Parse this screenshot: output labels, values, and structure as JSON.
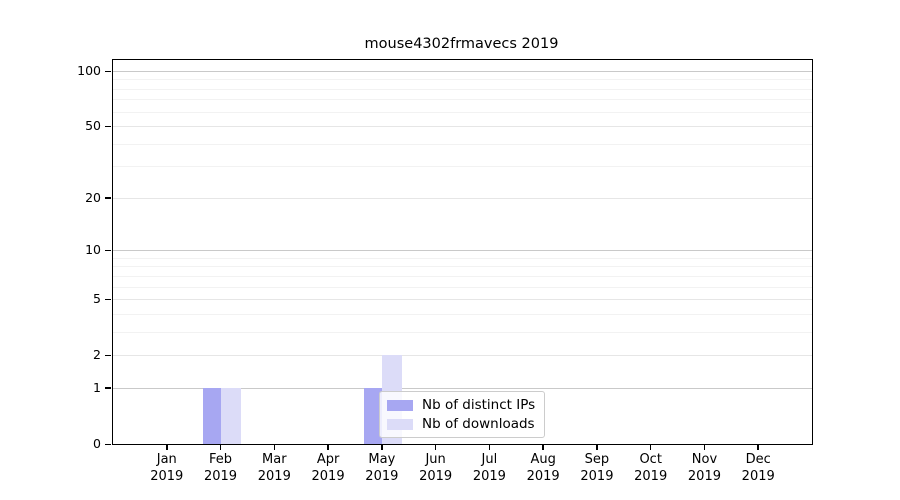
{
  "chart_data": {
    "type": "bar",
    "title": "mouse4302frmavecs 2019",
    "xlabel": "",
    "ylabel": "",
    "year_label": "2019",
    "months": [
      "Jan",
      "Feb",
      "Mar",
      "Apr",
      "May",
      "Jun",
      "Jul",
      "Aug",
      "Sep",
      "Oct",
      "Nov",
      "Dec"
    ],
    "categories": [
      "Jan 2019",
      "Feb 2019",
      "Mar 2019",
      "Apr 2019",
      "May 2019",
      "Jun 2019",
      "Jul 2019",
      "Aug 2019",
      "Sep 2019",
      "Oct 2019",
      "Nov 2019",
      "Dec 2019"
    ],
    "series": [
      {
        "name": "Nb of distinct IPs",
        "color": "#a7a7f2",
        "values": [
          0,
          1,
          0,
          0,
          1,
          0,
          0,
          0,
          0,
          0,
          0,
          0
        ]
      },
      {
        "name": "Nb of downloads",
        "color": "#dcdcf8",
        "values": [
          0,
          1,
          0,
          0,
          2,
          0,
          0,
          0,
          0,
          0,
          0,
          0
        ]
      }
    ],
    "yticks": [
      0,
      1,
      2,
      5,
      10,
      20,
      50,
      100
    ],
    "yscale": "log1p",
    "ylim": [
      0,
      113
    ],
    "grid": true,
    "legend_position": "lower-center-inside",
    "grid_colors": {
      "major": "#c9c9c9",
      "minor": "#f2f2f2"
    },
    "spine_color": "#000000"
  }
}
